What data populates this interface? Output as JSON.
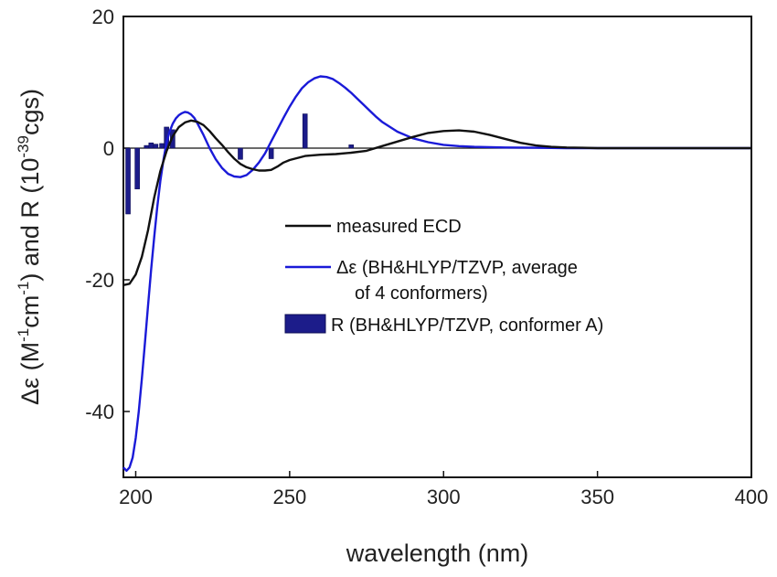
{
  "chart_data": {
    "type": "line",
    "title": "",
    "xlabel": "wavelength (nm)",
    "ylabel_parts": [
      "Δε (M",
      "-1",
      "cm",
      "-1",
      ") and R (10",
      "-39",
      "cgs)"
    ],
    "xlim": [
      196,
      400
    ],
    "ylim": [
      -50,
      20
    ],
    "x_ticks": [
      200,
      250,
      300,
      350,
      400
    ],
    "y_ticks": [
      -40,
      -20,
      0,
      20
    ],
    "zero_line": true,
    "legend_position": "center-right",
    "colors": {
      "measured": "#111111",
      "calculated": "#1a1ad8",
      "bars": "#1c1c8a",
      "axis": "#111111"
    },
    "series": [
      {
        "name": "measured ECD",
        "kind": "line",
        "x": [
          196,
          198,
          200,
          202,
          204,
          206,
          208,
          210,
          212,
          214,
          216,
          218,
          220,
          222,
          224,
          226,
          228,
          230,
          232,
          234,
          236,
          238,
          240,
          242,
          244,
          246,
          248,
          250,
          255,
          260,
          265,
          270,
          275,
          280,
          285,
          290,
          295,
          300,
          305,
          310,
          315,
          320,
          325,
          330,
          335,
          340,
          345,
          350,
          360,
          380,
          400
        ],
        "y": [
          -20.8,
          -20.6,
          -19.2,
          -16.5,
          -12.5,
          -7.5,
          -3.5,
          -0.5,
          1.8,
          3.2,
          3.9,
          4.2,
          4.0,
          3.5,
          2.6,
          1.5,
          0.5,
          -0.6,
          -1.6,
          -2.4,
          -2.9,
          -3.2,
          -3.4,
          -3.4,
          -3.3,
          -2.8,
          -2.2,
          -1.8,
          -1.2,
          -1.0,
          -0.9,
          -0.7,
          -0.4,
          0.3,
          1.0,
          1.7,
          2.3,
          2.6,
          2.7,
          2.5,
          2.0,
          1.4,
          0.8,
          0.4,
          0.2,
          0.1,
          0.05,
          0.0,
          0.0,
          0.0,
          0.0
        ]
      },
      {
        "name": "Δε (BH&HLYP/TZVP, average",
        "name_line2": "of 4 conformers)",
        "kind": "line",
        "x": [
          196,
          197,
          198,
          199,
          200,
          201,
          202,
          203,
          204,
          205,
          206,
          207,
          208,
          209,
          210,
          211,
          212,
          213,
          214,
          215,
          216,
          217,
          218,
          219,
          220,
          222,
          224,
          226,
          228,
          230,
          232,
          234,
          236,
          238,
          240,
          242,
          244,
          246,
          248,
          250,
          252,
          254,
          256,
          258,
          260,
          262,
          264,
          266,
          268,
          270,
          272,
          274,
          276,
          278,
          280,
          285,
          290,
          295,
          300,
          305,
          310,
          320,
          330,
          340,
          350,
          360,
          380,
          400
        ],
        "y": [
          -48.5,
          -49.0,
          -48.5,
          -47.0,
          -44.0,
          -40.0,
          -35.0,
          -29.5,
          -24.0,
          -18.5,
          -13.5,
          -9.0,
          -5.0,
          -1.8,
          0.8,
          2.5,
          3.7,
          4.5,
          5.0,
          5.3,
          5.5,
          5.4,
          5.1,
          4.6,
          3.8,
          2.0,
          0.0,
          -1.7,
          -3.0,
          -3.9,
          -4.3,
          -4.4,
          -4.1,
          -3.3,
          -2.2,
          -0.8,
          1.0,
          2.8,
          4.6,
          6.3,
          7.8,
          9.1,
          10.0,
          10.6,
          10.9,
          10.8,
          10.5,
          9.9,
          9.2,
          8.4,
          7.5,
          6.6,
          5.7,
          4.8,
          4.0,
          2.5,
          1.5,
          0.9,
          0.5,
          0.3,
          0.2,
          0.1,
          0.05,
          0.0,
          0.0,
          0.0,
          0.0,
          0.0
        ]
      },
      {
        "name": "R (BH&HLYP/TZVP, conformer A)",
        "kind": "bar",
        "x": [
          197.5,
          200.5,
          203.5,
          205,
          206.5,
          208.5,
          210,
          212,
          234,
          244,
          255,
          270
        ],
        "y": [
          -10.0,
          -6.2,
          0.4,
          0.8,
          0.6,
          0.7,
          3.2,
          2.8,
          -1.7,
          -1.6,
          5.2,
          0.5
        ]
      }
    ]
  }
}
